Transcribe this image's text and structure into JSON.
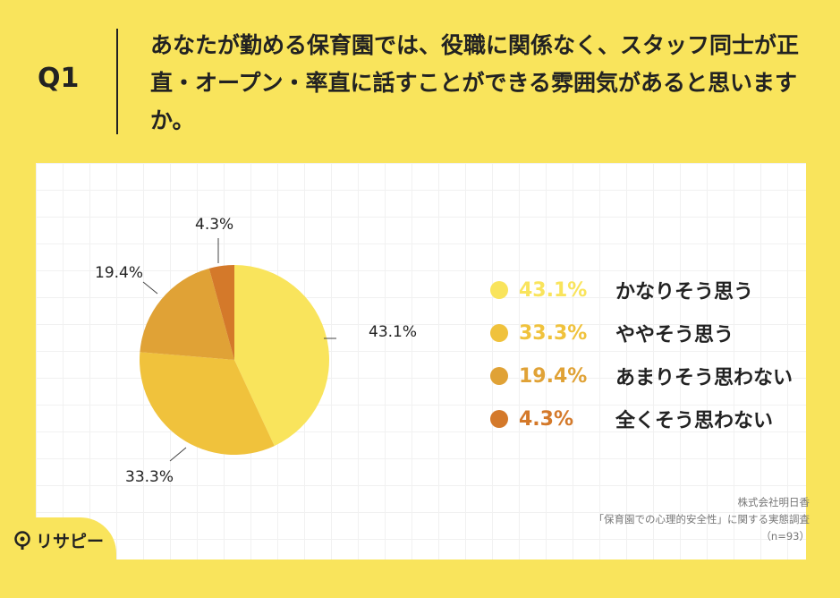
{
  "header": {
    "q_label": "Q1",
    "question": "あなたが勤める保育園では、役職に関係なく、スタッフ同士が正直・オープン・率直に話すことができる雰囲気があると思いますか。"
  },
  "chart_data": {
    "type": "pie",
    "slices": [
      {
        "label": "かなりそう思う",
        "value": 43.1,
        "value_label": "43.1%",
        "color": "#f9e45c"
      },
      {
        "label": "ややそう思う",
        "value": 33.3,
        "value_label": "33.3%",
        "color": "#f0c23c"
      },
      {
        "label": "あまりそう思わない",
        "value": 19.4,
        "value_label": "19.4%",
        "color": "#e0a236"
      },
      {
        "label": "全くそう思わない",
        "value": 4.3,
        "value_label": "4.3%",
        "color": "#d4792a"
      }
    ]
  },
  "source": {
    "line1": "株式会社明日香",
    "line2": "「保育園での心理的安全性」に関する実態調査",
    "line3": "（n=93）"
  },
  "logo": {
    "text": "リサピー",
    "icon": "lightbulb-icon"
  }
}
